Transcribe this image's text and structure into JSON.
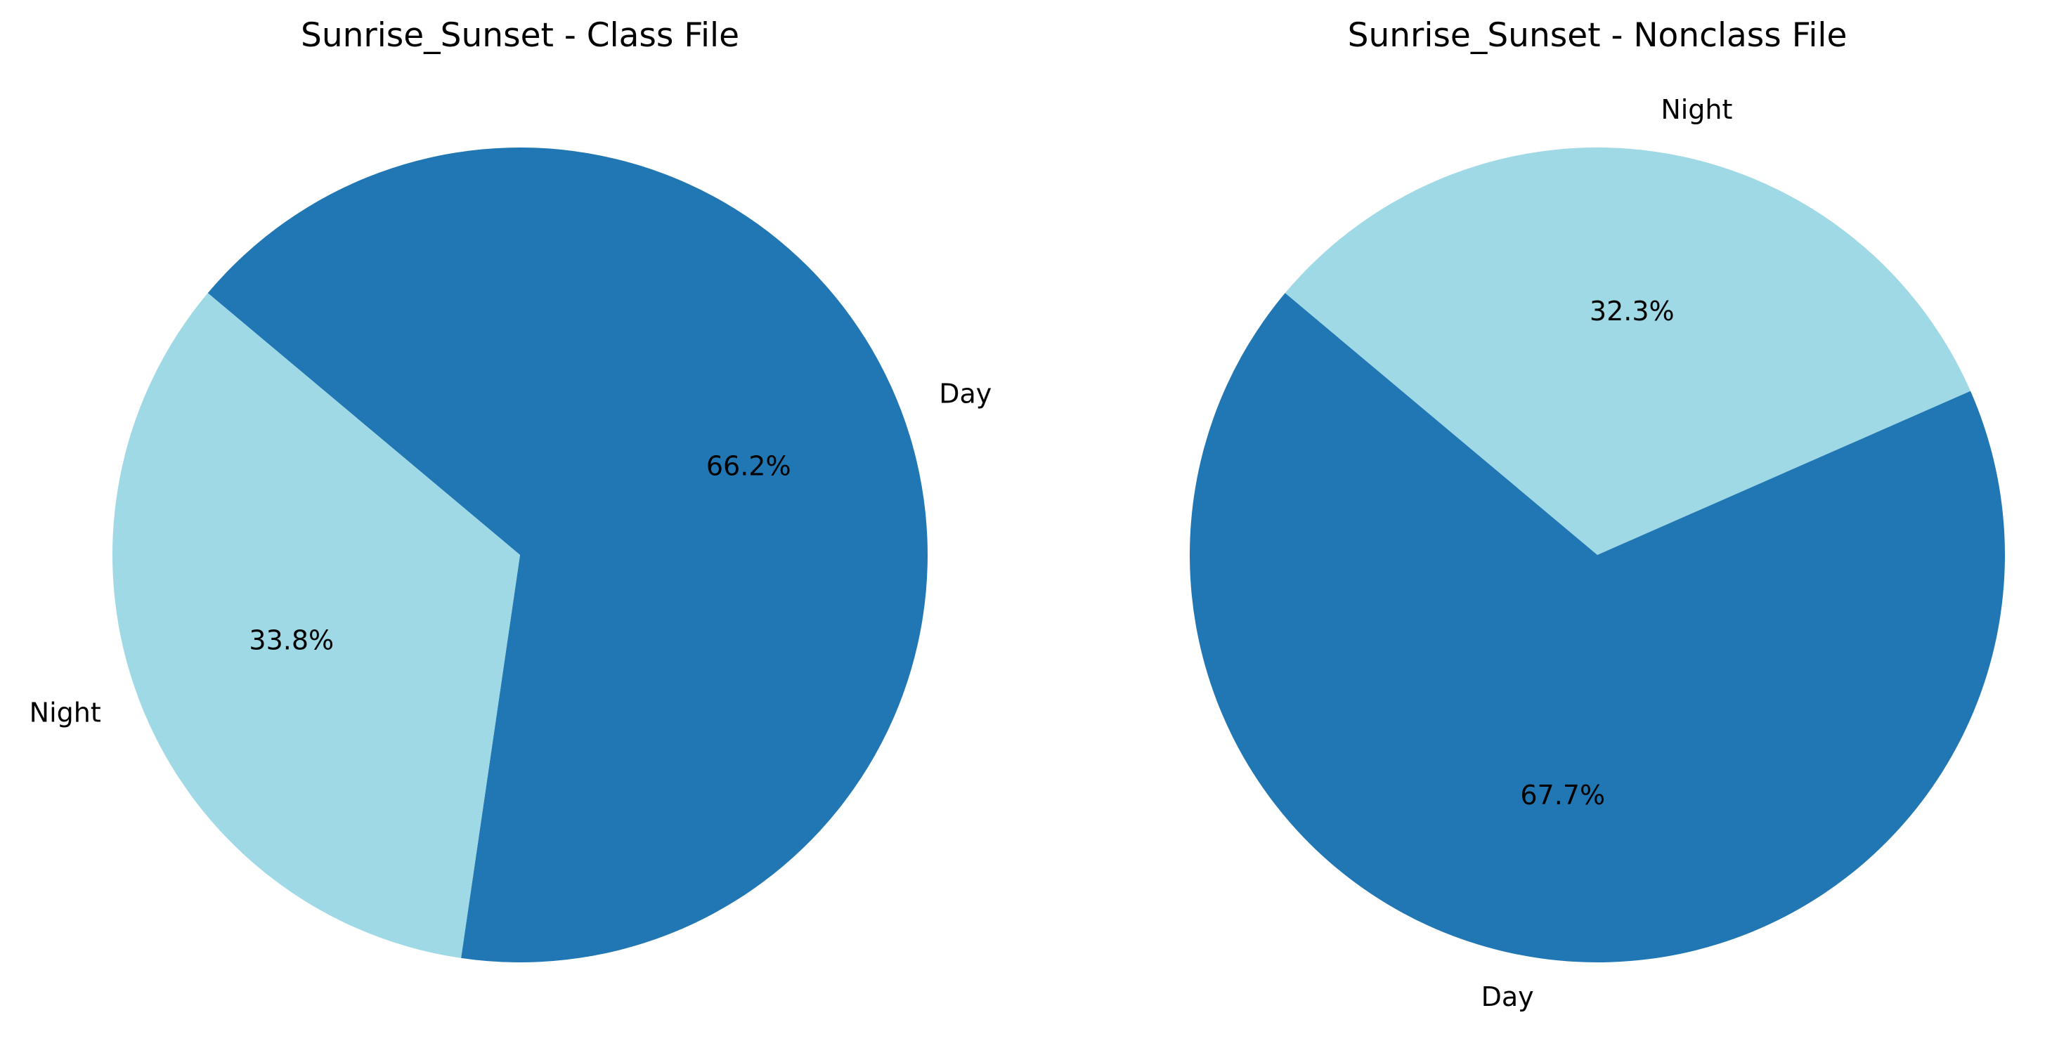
{
  "chart_data": [
    {
      "type": "pie",
      "title": "Sunrise_Sunset - Class File",
      "slices": [
        {
          "label": "Day",
          "value": 66.2,
          "pct_label": "66.2%",
          "color": "#2177b4"
        },
        {
          "label": "Night",
          "value": 33.8,
          "pct_label": "33.8%",
          "color": "#9fd9e5"
        }
      ]
    },
    {
      "type": "pie",
      "title": "Sunrise_Sunset - Nonclass File",
      "slices": [
        {
          "label": "Day",
          "value": 67.7,
          "pct_label": "67.7%",
          "color": "#2177b4"
        },
        {
          "label": "Night",
          "value": 32.3,
          "pct_label": "32.3%",
          "color": "#9fd9e5"
        }
      ]
    }
  ]
}
